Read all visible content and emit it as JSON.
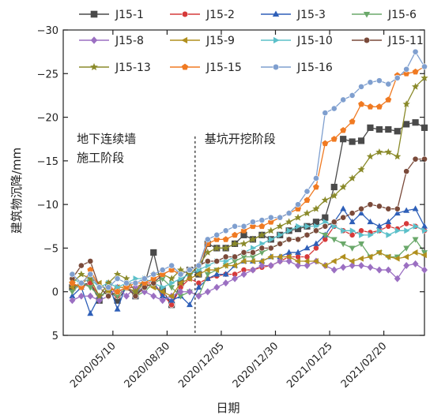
{
  "chart_data": {
    "type": "line",
    "title": "",
    "xlabel": "日期",
    "ylabel": "建筑物沉降/mm",
    "ylim": [
      5,
      -30
    ],
    "y_inverted": true,
    "y_ticks": [
      5,
      0,
      -5,
      -10,
      -15,
      -20,
      -25,
      -30
    ],
    "y_tick_labels": [
      "5",
      "0",
      "−5",
      "−10",
      "−15",
      "−20",
      "−25",
      "−30"
    ],
    "x_tick_labels": [
      "2020/05/10",
      "2020/08/30",
      "2020/12/05",
      "2020/12/30",
      "2021/01/25",
      "2021/02/20"
    ],
    "x_ticks": [
      5.5,
      11.5,
      17.5,
      23.5,
      29.5,
      35.5
    ],
    "x_range": [
      0,
      40
    ],
    "grid": false,
    "legend_placement": "top",
    "divider_x": 14.6,
    "annotations": [
      {
        "lines": [
          "地下连续墙",
          "施工阶段"
        ],
        "side": "left"
      },
      {
        "lines": [
          "基坑开挖阶段"
        ],
        "side": "right"
      }
    ],
    "series": [
      {
        "name": "J15-1",
        "color": "#4a4a4a",
        "marker": "square",
        "values": [
          -0.5,
          -0.8,
          -1.0,
          1.0,
          -0.6,
          1.0,
          -0.5,
          0.5,
          -0.8,
          -4.5,
          -0.2,
          1.5,
          -1.0,
          -2.5,
          -2.0,
          -5.5,
          -5.0,
          -5.0,
          -5.5,
          -6.5,
          -6.0,
          -6.5,
          -6.0,
          -6.5,
          -7.0,
          -7.2,
          -7.5,
          -8.0,
          -8.5,
          -12.0,
          -17.5,
          -17.2,
          -17.3,
          -18.8,
          -18.6,
          -18.6,
          -18.4,
          -19.2,
          -19.4,
          -18.8
        ]
      },
      {
        "name": "J15-2",
        "color": "#d63a3a",
        "marker": "circle",
        "values": [
          -1.0,
          -0.5,
          -1.0,
          0.5,
          -1.0,
          0.5,
          -0.5,
          -0.5,
          -1.0,
          -1.0,
          0.3,
          1.5,
          -0.5,
          -1.5,
          -1.0,
          -1.5,
          -1.8,
          -2.0,
          -2.0,
          -2.5,
          -2.5,
          -2.8,
          -3.0,
          -3.5,
          -4.0,
          -4.0,
          -4.0,
          -5.0,
          -6.0,
          -7.5,
          -7.0,
          -6.5,
          -7.0,
          -6.8,
          -7.0,
          -7.5,
          -7.2,
          -7.8,
          -7.5,
          -7.0
        ]
      },
      {
        "name": "J15-3",
        "color": "#2e5fb8",
        "marker": "triangle-up",
        "values": [
          0.5,
          -0.5,
          2.5,
          0.5,
          -1.0,
          2.0,
          -0.8,
          0.5,
          -1.5,
          -1.0,
          0.5,
          1.0,
          0.5,
          1.5,
          -0.5,
          -1.5,
          -2.0,
          -2.0,
          -3.0,
          -3.5,
          -3.5,
          -3.5,
          -4.0,
          -4.0,
          -4.5,
          -4.5,
          -5.0,
          -5.5,
          -6.5,
          -8.0,
          -9.5,
          -8.0,
          -9.0,
          -8.0,
          -7.5,
          -8.0,
          -9.0,
          -9.3,
          -9.5,
          -7.5
        ]
      },
      {
        "name": "J15-6",
        "color": "#6aa86a",
        "marker": "triangle-down",
        "values": [
          0.0,
          -1.0,
          -0.5,
          0.5,
          0.0,
          0.5,
          -0.5,
          0.5,
          0.0,
          -1.0,
          -1.5,
          -0.5,
          0.5,
          0.0,
          0.5,
          -2.0,
          -2.5,
          -3.0,
          -3.5,
          -4.0,
          -4.0,
          -4.5,
          -5.0,
          -5.5,
          -6.0,
          -6.0,
          -6.5,
          -7.0,
          -6.5,
          -6.0,
          -5.5,
          -5.0,
          -5.5,
          -4.0,
          -4.5,
          -4.0,
          -4.0,
          -5.0,
          -6.0,
          -4.5
        ]
      },
      {
        "name": "J15-8",
        "color": "#9b6fc2",
        "marker": "diamond",
        "values": [
          1.0,
          0.5,
          0.5,
          1.0,
          0.5,
          -0.5,
          0.5,
          -0.5,
          0.0,
          0.5,
          1.0,
          0.5,
          0.0,
          0.0,
          0.5,
          0.0,
          -0.5,
          -1.0,
          -1.5,
          -2.0,
          -2.5,
          -3.0,
          -3.0,
          -3.5,
          -3.5,
          -3.0,
          -3.0,
          -3.5,
          -3.0,
          -2.5,
          -2.8,
          -3.0,
          -3.0,
          -2.8,
          -2.5,
          -2.5,
          -1.5,
          -3.0,
          -3.2,
          -2.5
        ]
      },
      {
        "name": "J15-9",
        "color": "#b08f1e",
        "marker": "triangle-left",
        "values": [
          -0.5,
          -1.0,
          -1.5,
          -1.0,
          0.0,
          -0.5,
          -0.5,
          0.0,
          -1.0,
          -0.5,
          0.0,
          0.5,
          -1.0,
          -1.5,
          -2.0,
          -2.5,
          -2.5,
          -3.0,
          -3.0,
          -3.5,
          -3.5,
          -3.5,
          -4.0,
          -4.0,
          -4.0,
          -3.5,
          -3.5,
          -3.5,
          -3.0,
          -3.5,
          -4.0,
          -3.5,
          -3.8,
          -4.0,
          -4.5,
          -4.0,
          -3.8,
          -4.0,
          -4.5,
          -4.2
        ]
      },
      {
        "name": "J15-10",
        "color": "#5bc0c9",
        "marker": "triangle-right",
        "values": [
          -1.5,
          -1.0,
          -1.5,
          -0.5,
          -1.0,
          -0.5,
          -1.0,
          -1.5,
          -1.5,
          -1.0,
          -0.5,
          -1.0,
          -1.5,
          -2.0,
          -2.5,
          -3.0,
          -3.5,
          -3.5,
          -4.0,
          -4.5,
          -5.0,
          -5.5,
          -6.0,
          -6.5,
          -7.0,
          -7.5,
          -7.5,
          -7.5,
          -8.0,
          -7.5,
          -7.0,
          -7.0,
          -6.5,
          -6.5,
          -7.0,
          -6.5,
          -7.0,
          -7.0,
          -7.5,
          -7.0
        ]
      },
      {
        "name": "J15-11",
        "color": "#7a4a3a",
        "marker": "circle",
        "values": [
          -1.5,
          -3.0,
          -3.5,
          -0.5,
          0.5,
          0.0,
          -0.5,
          0.5,
          -0.5,
          -1.0,
          -2.0,
          -2.5,
          -2.0,
          -2.5,
          -3.0,
          -3.5,
          -3.5,
          -4.0,
          -4.0,
          -4.5,
          -4.5,
          -5.0,
          -5.0,
          -5.5,
          -6.0,
          -6.0,
          -6.5,
          -7.0,
          -7.5,
          -8.0,
          -8.5,
          -9.0,
          -9.5,
          -10.0,
          -9.8,
          -9.5,
          -9.5,
          -13.8,
          -15.2,
          -15.2
        ]
      },
      {
        "name": "J15-13",
        "color": "#8a8a2a",
        "marker": "star",
        "values": [
          -1.0,
          -2.0,
          -1.5,
          0.5,
          -1.0,
          -2.0,
          -1.5,
          0.0,
          -1.5,
          -2.0,
          -2.0,
          -1.5,
          -2.5,
          -2.0,
          -3.0,
          -4.5,
          -5.0,
          -5.0,
          -5.5,
          -5.5,
          -6.0,
          -6.5,
          -7.0,
          -7.5,
          -8.0,
          -8.5,
          -9.0,
          -9.5,
          -10.5,
          -11.0,
          -12.0,
          -13.0,
          -14.0,
          -15.5,
          -16.0,
          -16.0,
          -15.5,
          -21.5,
          -23.5,
          -24.5
        ]
      },
      {
        "name": "J15-15",
        "color": "#f07a22",
        "marker": "pentagon",
        "values": [
          -1.0,
          -0.5,
          -2.5,
          -0.5,
          -0.5,
          0.0,
          -0.5,
          -1.0,
          -1.0,
          -1.5,
          -2.0,
          -2.5,
          -2.0,
          -2.5,
          -3.0,
          -5.5,
          -6.0,
          -6.0,
          -6.5,
          -7.0,
          -7.5,
          -7.5,
          -8.0,
          -8.5,
          -9.0,
          -9.5,
          -10.5,
          -12.0,
          -17.0,
          -17.5,
          -18.5,
          -19.5,
          -21.5,
          -21.2,
          -21.2,
          -22.0,
          -24.8,
          -25.0,
          -25.2,
          -25.8
        ]
      },
      {
        "name": "J15-16",
        "color": "#7f9fcf",
        "marker": "circle",
        "values": [
          -2.0,
          -1.0,
          -2.0,
          -0.5,
          -0.5,
          -1.5,
          -1.0,
          -1.0,
          -1.5,
          -2.0,
          -2.5,
          -3.0,
          -2.0,
          -2.5,
          -3.0,
          -6.0,
          -6.5,
          -7.0,
          -7.5,
          -7.5,
          -8.0,
          -8.2,
          -8.5,
          -8.5,
          -9.0,
          -10.0,
          -11.5,
          -13.0,
          -20.5,
          -21.0,
          -22.0,
          -22.5,
          -23.5,
          -24.0,
          -24.2,
          -23.8,
          -24.5,
          -25.5,
          -27.5,
          -25.8
        ]
      }
    ]
  }
}
